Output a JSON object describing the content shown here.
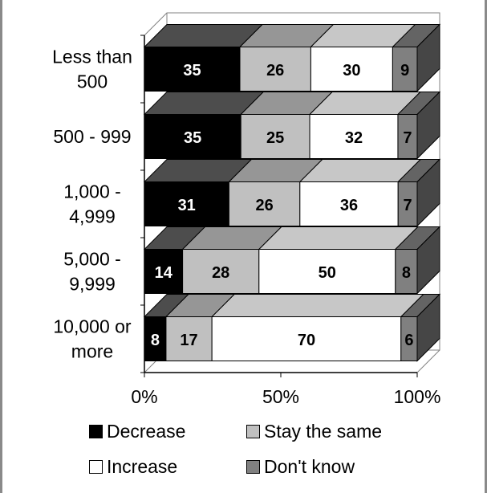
{
  "chart_data": {
    "type": "bar",
    "orientation": "horizontal",
    "stacked": true,
    "percent_stacked": true,
    "three_d": true,
    "categories": [
      "Less than\n500",
      "500 - 999",
      "1,000 -\n4,999",
      "5,000 -\n9,999",
      "10,000 or\nmore"
    ],
    "series": [
      {
        "name": "Decrease",
        "values": [
          35,
          35,
          31,
          14,
          8
        ],
        "color": "#000000",
        "label_color": "#ffffff"
      },
      {
        "name": "Stay the same",
        "values": [
          26,
          25,
          26,
          28,
          17
        ],
        "color": "#c0c0c0",
        "label_color": "#000000"
      },
      {
        "name": "Increase",
        "values": [
          30,
          32,
          36,
          50,
          70
        ],
        "color": "#ffffff",
        "label_color": "#000000"
      },
      {
        "name": "Don't know",
        "values": [
          9,
          7,
          7,
          8,
          6
        ],
        "color": "#808080",
        "label_color": "#000000"
      }
    ],
    "x_ticks": [
      "0%",
      "50%",
      "100%"
    ],
    "xlim": [
      0,
      100
    ],
    "legend_position": "bottom",
    "grid": false
  },
  "legend": {
    "decrease": "Decrease",
    "stay_same": "Stay the same",
    "increase": "Increase",
    "dont_know": "Don't know"
  }
}
